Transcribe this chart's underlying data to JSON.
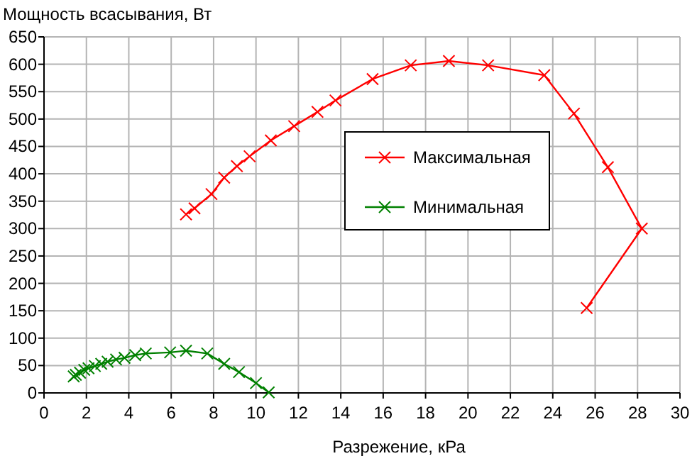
{
  "chart_data": {
    "type": "line",
    "xlabel": "Разрежение, кРа",
    "ylabel": "Мощность всасывания, Вт",
    "xlim": [
      0,
      30
    ],
    "xticks": [
      0,
      2,
      4,
      6,
      8,
      10,
      12,
      14,
      16,
      18,
      20,
      22,
      24,
      26,
      28,
      30
    ],
    "ylim": [
      0,
      650
    ],
    "yticks": [
      0,
      50,
      100,
      150,
      200,
      250,
      300,
      350,
      400,
      450,
      500,
      550,
      600,
      650
    ],
    "grid": true,
    "legend": "right",
    "marker": "cross",
    "line_style": "solid",
    "series": [
      {
        "name": "Максимальная",
        "color": "#ff0000",
        "x": [
          6.7,
          7.1,
          7.9,
          8.5,
          9.1,
          9.7,
          10.7,
          11.8,
          12.9,
          13.75,
          15.5,
          17.3,
          19.1,
          20.95,
          23.6,
          25,
          26.6,
          28.2,
          25.6
        ],
        "values": [
          326,
          337,
          363,
          393,
          414,
          432,
          461,
          487,
          513,
          534,
          573,
          598,
          606,
          598,
          580,
          510,
          412,
          300,
          155
        ]
      },
      {
        "name": "Минимальная",
        "color": "#008000",
        "x": [
          1.4,
          1.5,
          1.7,
          1.9,
          2.1,
          2.4,
          2.7,
          3.0,
          3.4,
          3.8,
          4.3,
          4.8,
          5.95,
          6.7,
          7.7,
          8.5,
          9.2,
          10,
          10.6
        ],
        "values": [
          30,
          33,
          37,
          42,
          45,
          49,
          53,
          57,
          61,
          64,
          69,
          72,
          74,
          77,
          72,
          53,
          38,
          18,
          1
        ]
      }
    ]
  }
}
